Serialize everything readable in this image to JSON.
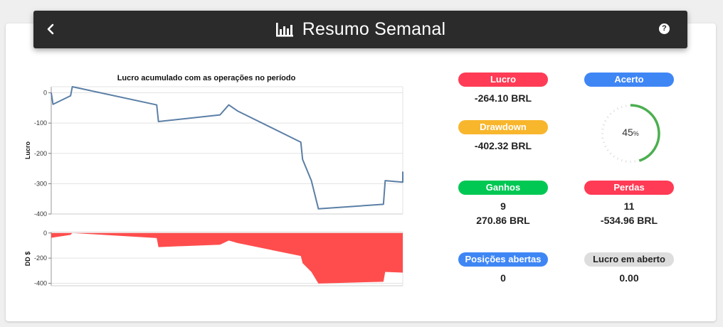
{
  "header": {
    "title": "Resumo Semanal",
    "back_icon": "chevron-left-icon",
    "title_icon": "bar-chart-icon",
    "help_icon": "question-circle-icon",
    "help_glyph": "?"
  },
  "chart_data": [
    {
      "type": "line",
      "title": "Lucro acumulado com as operações no período",
      "ylabel": "Lucro",
      "ylim": [
        -400,
        20
      ],
      "yticks": [
        0,
        -100,
        -200,
        -300,
        -400
      ],
      "color": "#5b7fa6",
      "grid": true,
      "points": [
        [
          0,
          0
        ],
        [
          0.5,
          -38
        ],
        [
          5.5,
          -10
        ],
        [
          6,
          20
        ],
        [
          30,
          -40
        ],
        [
          30.5,
          -95
        ],
        [
          48,
          -73
        ],
        [
          50.5,
          -40
        ],
        [
          53,
          -60
        ],
        [
          71,
          -163
        ],
        [
          71.5,
          -220
        ],
        [
          74,
          -290
        ],
        [
          76,
          -383
        ],
        [
          94.5,
          -368
        ],
        [
          95,
          -290
        ],
        [
          100,
          -295
        ],
        [
          100,
          -260
        ]
      ]
    },
    {
      "type": "area",
      "ylabel": "DD $",
      "ylim": [
        -420,
        10
      ],
      "yticks": [
        0,
        -200,
        -400
      ],
      "color": "#ff4d4d",
      "grid": true,
      "points": [
        [
          0,
          -38
        ],
        [
          5.5,
          -15
        ],
        [
          6,
          0
        ],
        [
          30,
          -40
        ],
        [
          30.5,
          -112
        ],
        [
          48,
          -93
        ],
        [
          50.5,
          -60
        ],
        [
          53,
          -80
        ],
        [
          71,
          -183
        ],
        [
          71.5,
          -240
        ],
        [
          74,
          -310
        ],
        [
          76,
          -402
        ],
        [
          94.5,
          -388
        ],
        [
          95,
          -310
        ],
        [
          100,
          -315
        ]
      ]
    }
  ],
  "stats": {
    "lucro": {
      "label": "Lucro",
      "value": "-264.10 BRL",
      "color": "#ff3b55"
    },
    "drawdown": {
      "label": "Drawdown",
      "value": "-402.32 BRL",
      "color": "#f8b62d"
    },
    "acerto": {
      "label": "Acerto",
      "percent": 45,
      "percent_text": "45",
      "unit": "%",
      "color": "#3f86f5",
      "gauge_color": "#4caf50"
    },
    "ganhos": {
      "label": "Ganhos",
      "count": "9",
      "value": "270.86 BRL",
      "color": "#00c853"
    },
    "perdas": {
      "label": "Perdas",
      "count": "11",
      "value": "-534.96 BRL",
      "color": "#ff3b55"
    },
    "posicoes": {
      "label": "Posições abertas",
      "value": "0",
      "color": "#3f86f5"
    },
    "lucro_aberto": {
      "label": "Lucro em aberto",
      "value": "0.00",
      "color": "#dddddd"
    }
  }
}
